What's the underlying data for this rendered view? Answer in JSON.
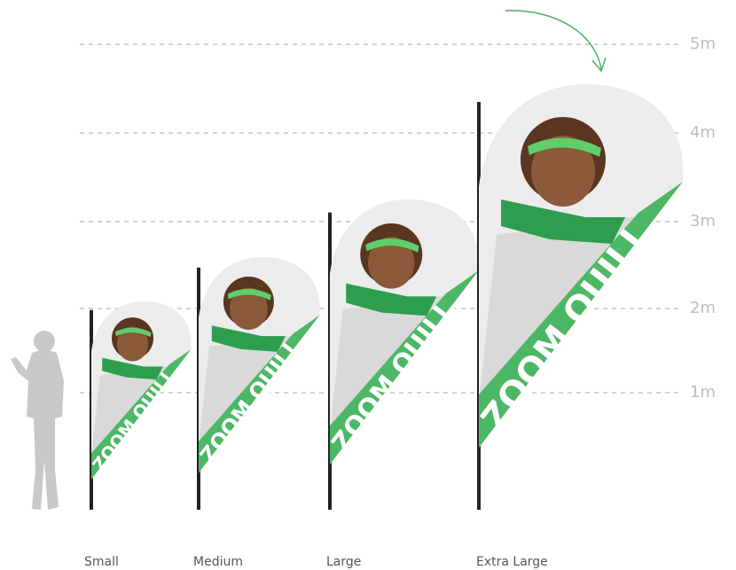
{
  "scale": {
    "ticks": [
      "1m",
      "2m",
      "3m",
      "4m",
      "5m"
    ]
  },
  "flags": [
    {
      "size": "Small",
      "print": "ZOOM QUILL"
    },
    {
      "size": "Medium",
      "print": "ZOOM QUILL"
    },
    {
      "size": "Large",
      "print": "ZOOM QUILL"
    },
    {
      "size": "Extra Large",
      "print": "ZOOM QUILL"
    }
  ]
}
